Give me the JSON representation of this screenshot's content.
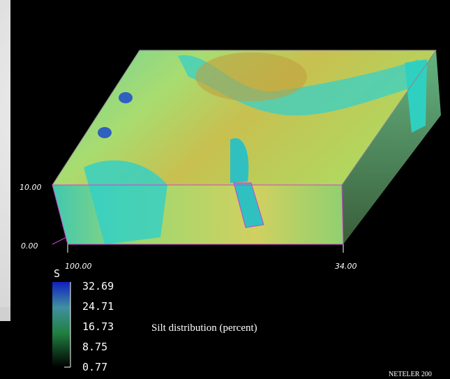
{
  "axis_labels": [
    "10.00",
    "0.00",
    "100.00",
    "34.00"
  ],
  "legend": {
    "title": "S",
    "ticks": [
      "32.69",
      "24.71",
      "16.73",
      "8.75",
      "0.77"
    ]
  },
  "caption": "Silt distribution (percent)",
  "credit": "NETELER 200"
}
